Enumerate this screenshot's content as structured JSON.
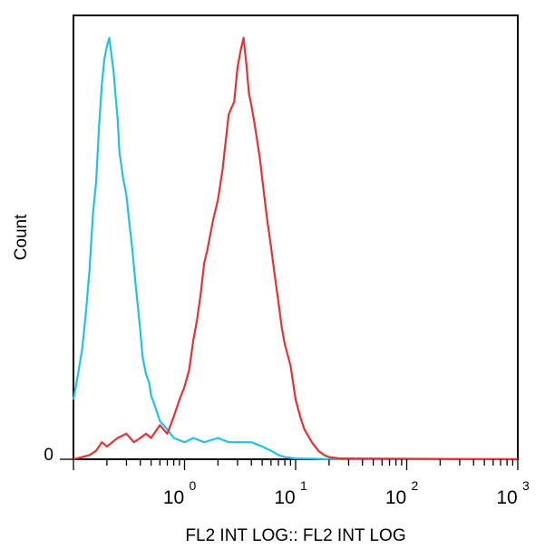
{
  "chart_data": {
    "type": "line",
    "title": "",
    "xlabel": "FL2 INT LOG:: FL2 INT LOG",
    "ylabel": "Count",
    "x_scale": "log",
    "xlim": [
      0.1,
      1000
    ],
    "ylim": [
      0,
      100
    ],
    "grid": false,
    "x_ticks": [
      {
        "value": 1,
        "base": "10",
        "exp": "0"
      },
      {
        "value": 10,
        "base": "10",
        "exp": "1"
      },
      {
        "value": 100,
        "base": "10",
        "exp": "2"
      },
      {
        "value": 1000,
        "base": "10",
        "exp": "3"
      }
    ],
    "y_ticks": [
      {
        "value": 0,
        "label": "0"
      }
    ],
    "series": [
      {
        "color": "#1ec3ea",
        "x": [
          0.1,
          0.11,
          0.12,
          0.13,
          0.14,
          0.15,
          0.16,
          0.17,
          0.18,
          0.19,
          0.2,
          0.21,
          0.22,
          0.23,
          0.24,
          0.25,
          0.26,
          0.28,
          0.3,
          0.32,
          0.34,
          0.36,
          0.38,
          0.4,
          0.42,
          0.45,
          0.48,
          0.5,
          0.55,
          0.6,
          0.7,
          0.8,
          1.0,
          1.2,
          1.5,
          2.0,
          2.5,
          3.0,
          4.0,
          5.0,
          6.0,
          7.0,
          8.0,
          10,
          15,
          20,
          1000
        ],
        "y": [
          14,
          20,
          26,
          35,
          45,
          58,
          65,
          78,
          88,
          94,
          97,
          99,
          95,
          91,
          85,
          80,
          72,
          66,
          62,
          55,
          49,
          42,
          36,
          30,
          24,
          20,
          18,
          15,
          12,
          9,
          7,
          5,
          4,
          5,
          4,
          5,
          4,
          4,
          4,
          3,
          2,
          1,
          0.5,
          0.2,
          0.1,
          0,
          0
        ]
      },
      {
        "color": "#ee2f2f",
        "x": [
          0.1,
          0.12,
          0.14,
          0.16,
          0.18,
          0.2,
          0.25,
          0.3,
          0.35,
          0.4,
          0.45,
          0.5,
          0.6,
          0.7,
          0.8,
          0.9,
          1.0,
          1.1,
          1.2,
          1.3,
          1.4,
          1.5,
          1.6,
          1.8,
          2.0,
          2.2,
          2.5,
          2.8,
          3.0,
          3.2,
          3.4,
          3.6,
          3.8,
          4.0,
          4.2,
          4.5,
          4.8,
          5.0,
          5.5,
          6.0,
          6.5,
          7.0,
          7.5,
          8.0,
          9.0,
          10,
          11,
          12,
          14,
          16,
          18,
          20,
          25,
          1000
        ],
        "y": [
          0,
          0.5,
          1,
          2,
          4,
          3,
          5,
          6,
          4,
          5,
          6,
          5,
          8,
          6,
          10,
          14,
          17,
          21,
          28,
          33,
          39,
          46,
          49,
          56,
          61,
          68,
          81,
          84,
          92,
          96,
          99,
          93,
          86,
          83,
          80,
          75,
          70,
          66,
          57,
          50,
          43,
          37,
          31,
          27,
          22,
          14,
          10,
          7,
          4,
          2,
          1,
          0.5,
          0.2,
          0
        ]
      }
    ]
  }
}
